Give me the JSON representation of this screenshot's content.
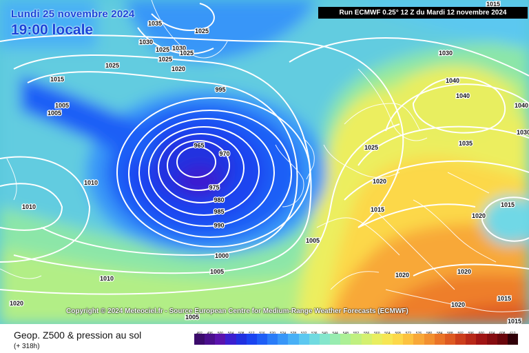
{
  "header": {
    "date": "Lundi 25 novembre 2024",
    "time": "19:00 locale",
    "run_info": "Run ECMWF 0.25° 12 Z du Mardi 12 novembre 2024"
  },
  "copyright": "Copyright © 2024 Meteociel.fr - Source European Centre for Medium-Range Weather Forecasts (ECMWF)",
  "footer": {
    "title": "Geop. Z500 & pression au sol",
    "subtitle": "(+ 318h)"
  },
  "pressure_labels": [
    "1015",
    "1035",
    "1025",
    "1030",
    "1025",
    "1030",
    "1025",
    "1025",
    "1020",
    "1015",
    "1005",
    "1005",
    "1025",
    "995",
    "965",
    "970",
    "975",
    "980",
    "985",
    "990",
    "1010",
    "1010",
    "1010",
    "1000",
    "1005",
    "1005",
    "1020",
    "1030",
    "1040",
    "1040",
    "1040",
    "1035",
    "1025",
    "1020",
    "1015",
    "1015",
    "1020",
    "1020",
    "1020",
    "1020",
    "1015",
    "1015",
    "1005",
    "1030"
  ],
  "legend": {
    "values": [
      "492",
      "496",
      "500",
      "504",
      "508",
      "512",
      "516",
      "520",
      "524",
      "528",
      "532",
      "536",
      "540",
      "544",
      "548",
      "552",
      "556",
      "560",
      "564",
      "568",
      "572",
      "576",
      "580",
      "584",
      "588",
      "592",
      "596",
      "600",
      "604",
      "608",
      "612"
    ],
    "colors": [
      "#3b0b6b",
      "#4a0f8c",
      "#5a13ad",
      "#3b1fd0",
      "#2030e0",
      "#1a44f0",
      "#1e5ef6",
      "#2a7cf8",
      "#3896f8",
      "#48b0f6",
      "#5cc8f0",
      "#70dae0",
      "#84e6cc",
      "#98ecb0",
      "#acf096",
      "#c0f080",
      "#d4f070",
      "#e8ee60",
      "#f6e654",
      "#fcd84a",
      "#fcc240",
      "#f8a838",
      "#f29030",
      "#ea7428",
      "#de5a22",
      "#cc3e1c",
      "#b82818",
      "#a01414",
      "#860c10",
      "#6a060c",
      "#300008"
    ]
  }
}
